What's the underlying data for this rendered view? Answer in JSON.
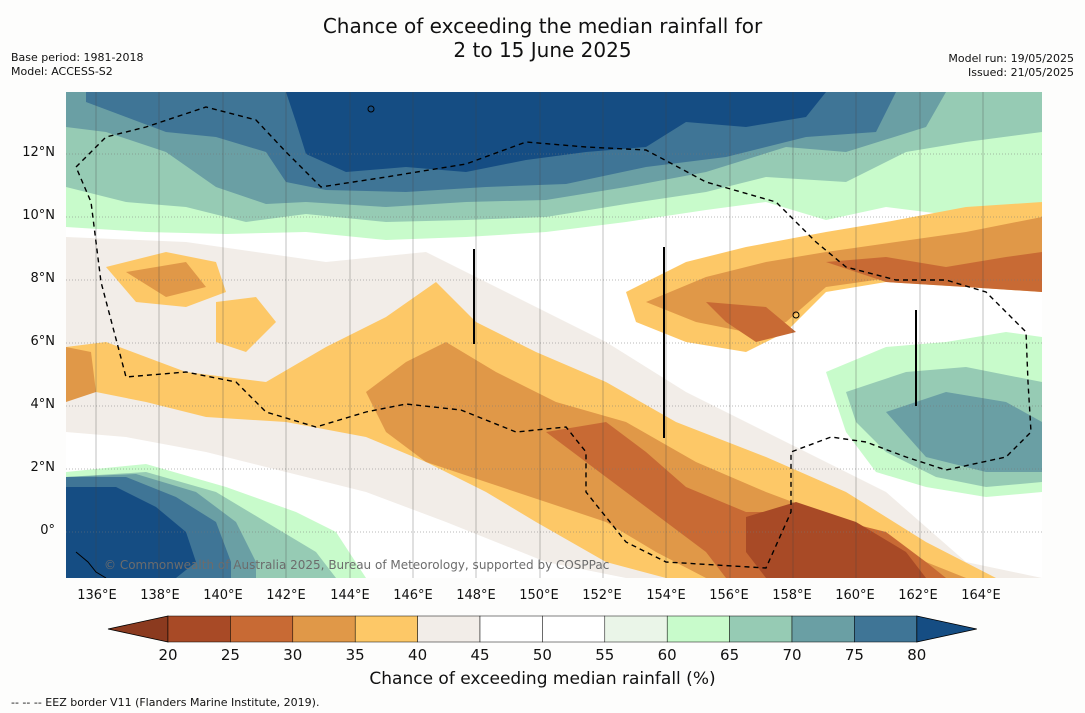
{
  "title_line1": "Chance of exceeding the median rainfall for",
  "title_line2": "2 to 15 June 2025",
  "meta": {
    "base_period": "Base period: 1981-2018",
    "model": "Model: ACCESS-S2",
    "model_run": "Model run: 19/05/2025",
    "issued": "Issued: 21/05/2025"
  },
  "attribution": "© Commonwealth of Australia 2025, Bureau of Meteorology, supported by COSPPac",
  "colorbar_label": "Chance of exceeding median rainfall (%)",
  "footnote": "--  --  -- EEZ border V11 (Flanders Marine Institute, 2019).",
  "y_ticks": [
    "12°N",
    "10°N",
    "8°N",
    "6°N",
    "4°N",
    "2°N",
    "0°"
  ],
  "x_ticks": [
    "136°E",
    "138°E",
    "140°E",
    "142°E",
    "144°E",
    "146°E",
    "148°E",
    "150°E",
    "152°E",
    "154°E",
    "156°E",
    "158°E",
    "160°E",
    "162°E",
    "164°E"
  ],
  "colorbar": {
    "ticks": [
      "20",
      "25",
      "30",
      "35",
      "40",
      "45",
      "50",
      "55",
      "60",
      "65",
      "70",
      "75",
      "80"
    ],
    "bins": [
      {
        "range": "<20",
        "color": "#8b3a1f"
      },
      {
        "range": "20-25",
        "color": "#a84a26"
      },
      {
        "range": "25-30",
        "color": "#c86a34"
      },
      {
        "range": "30-35",
        "color": "#e09848"
      },
      {
        "range": "35-40",
        "color": "#fdc867"
      },
      {
        "range": "40-45",
        "color": "#f2ede8"
      },
      {
        "range": "45-50",
        "color": "#ffffff"
      },
      {
        "range": "50-55",
        "color": "#ffffff"
      },
      {
        "range": "55-60",
        "color": "#eaf5e8"
      },
      {
        "range": "60-65",
        "color": "#c8fbcb"
      },
      {
        "range": "65-70",
        "color": "#96cbb4"
      },
      {
        "range": "70-75",
        "color": "#6a9fa4"
      },
      {
        "range": "75-80",
        "color": "#3f7596"
      },
      {
        "range": ">80",
        "color": "#154d83"
      }
    ]
  }
}
